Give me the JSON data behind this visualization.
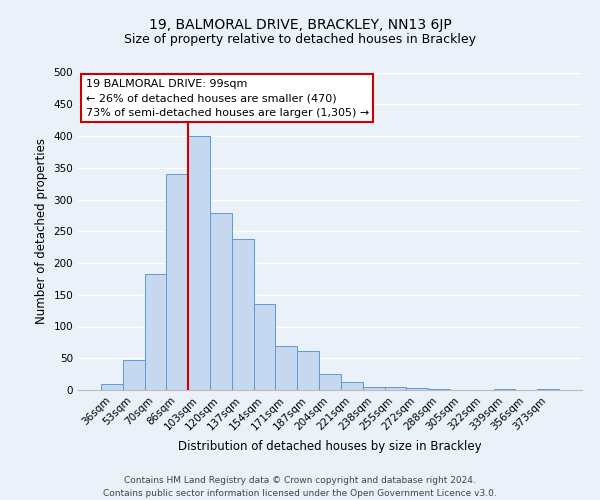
{
  "title": "19, BALMORAL DRIVE, BRACKLEY, NN13 6JP",
  "subtitle": "Size of property relative to detached houses in Brackley",
  "xlabel": "Distribution of detached houses by size in Brackley",
  "ylabel": "Number of detached properties",
  "bar_labels": [
    "36sqm",
    "53sqm",
    "70sqm",
    "86sqm",
    "103sqm",
    "120sqm",
    "137sqm",
    "154sqm",
    "171sqm",
    "187sqm",
    "204sqm",
    "221sqm",
    "238sqm",
    "255sqm",
    "272sqm",
    "288sqm",
    "305sqm",
    "322sqm",
    "339sqm",
    "356sqm",
    "373sqm"
  ],
  "bar_values": [
    10,
    47,
    183,
    340,
    400,
    278,
    238,
    135,
    70,
    62,
    25,
    12,
    5,
    5,
    3,
    2,
    0,
    0,
    2,
    0,
    2
  ],
  "bar_color": "#c5d8f0",
  "bar_edge_color": "#5b9bd5",
  "vline_color": "#cc0000",
  "ylim": [
    0,
    500
  ],
  "yticks": [
    0,
    50,
    100,
    150,
    200,
    250,
    300,
    350,
    400,
    450,
    500
  ],
  "annotation_line1": "19 BALMORAL DRIVE: 99sqm",
  "annotation_line2": "← 26% of detached houses are smaller (470)",
  "annotation_line3": "73% of semi-detached houses are larger (1,305) →",
  "footer_text": "Contains HM Land Registry data © Crown copyright and database right 2024.\nContains public sector information licensed under the Open Government Licence v3.0.",
  "bg_color": "#eaf1f8",
  "plot_bg_color": "#eaf1f8",
  "grid_color": "#ffffff",
  "title_fontsize": 10,
  "subtitle_fontsize": 9,
  "axis_label_fontsize": 8.5,
  "tick_fontsize": 7.5,
  "footer_fontsize": 6.5,
  "ann_fontsize": 8
}
